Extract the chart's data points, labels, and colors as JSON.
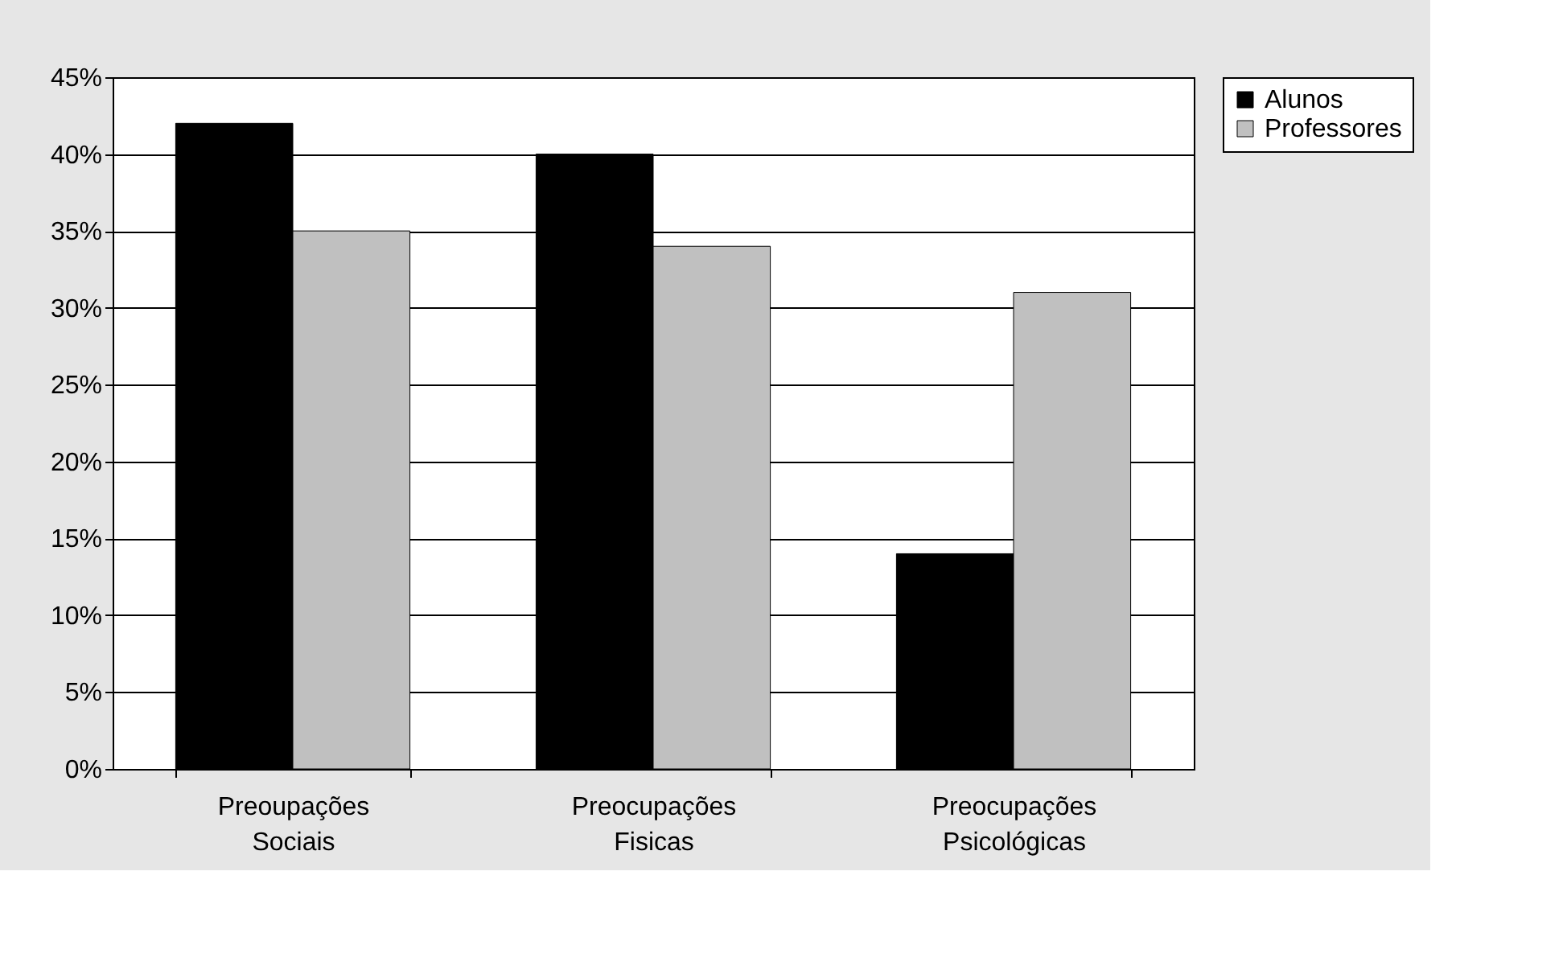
{
  "chart_data": {
    "type": "bar",
    "categories": [
      "Preoupações Sociais",
      "Preocupações Fisicas",
      "Preocupações Psicológicas"
    ],
    "series": [
      {
        "name": "Alunos",
        "color": "#000000",
        "values": [
          42,
          40,
          14
        ]
      },
      {
        "name": "Professores",
        "color": "#c0c0c0",
        "values": [
          35,
          34,
          31
        ]
      }
    ],
    "ylim": [
      0,
      45
    ],
    "yticks": [
      {
        "value": 0,
        "label": "0%"
      },
      {
        "value": 5,
        "label": "5%"
      },
      {
        "value": 10,
        "label": "10%"
      },
      {
        "value": 15,
        "label": "15%"
      },
      {
        "value": 20,
        "label": "20%"
      },
      {
        "value": 25,
        "label": "25%"
      },
      {
        "value": 30,
        "label": "30%"
      },
      {
        "value": 35,
        "label": "35%"
      },
      {
        "value": 40,
        "label": "40%"
      },
      {
        "value": 45,
        "label": "45%"
      }
    ],
    "grid": "y",
    "legend": "right"
  }
}
